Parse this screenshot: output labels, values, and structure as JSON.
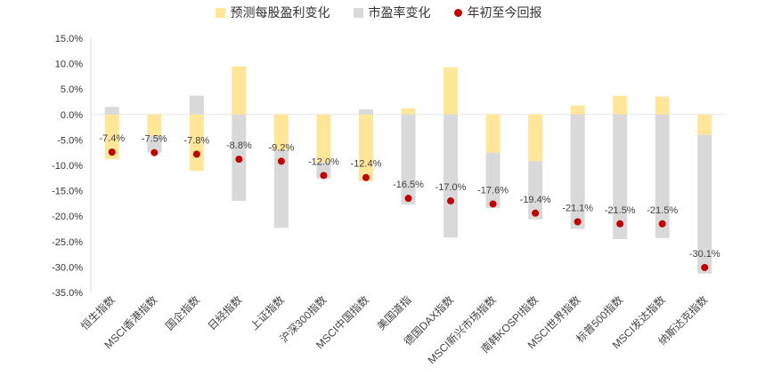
{
  "chart_data": {
    "type": "bar",
    "stacked": true,
    "title": "",
    "xlabel": "",
    "ylabel": "",
    "ylim": [
      -35,
      15
    ],
    "yticks": [
      "15.0%",
      "10.0%",
      "5.0%",
      "0.0%",
      "-5.0%",
      "-10.0%",
      "-15.0%",
      "-20.0%",
      "-25.0%",
      "-30.0%",
      "-35.0%"
    ],
    "ytick_values": [
      15,
      10,
      5,
      0,
      -5,
      -10,
      -15,
      -20,
      -25,
      -30,
      -35
    ],
    "legend_position": "top-center",
    "categories": [
      "恒生指数",
      "MSCI香港指数",
      "国企指数",
      "日经指数",
      "上证指数",
      "沪深300指数",
      "MSCI中国指数",
      "美国道指",
      "德国DAX指数",
      "MSCI新兴市场指数",
      "南韩KOSPI指数",
      "MSCI世界指数",
      "标普500指数",
      "MSCI发达指数",
      "纳斯达克指数"
    ],
    "series": [
      {
        "name": "预测每股盈利变化",
        "kind": "bar",
        "color": "#FFE699",
        "values": [
          -8.8,
          -4.2,
          -11.1,
          9.5,
          -7.0,
          -9.4,
          -13.1,
          1.2,
          9.3,
          -7.5,
          -9.2,
          1.8,
          3.7,
          3.5,
          -4.0
        ]
      },
      {
        "name": "市盈率变化",
        "kind": "bar",
        "color": "#D9D9D9",
        "values": [
          1.5,
          -3.3,
          3.7,
          -17.0,
          -15.3,
          -3.2,
          1.0,
          -17.7,
          -24.2,
          -10.9,
          -11.4,
          -22.5,
          -24.5,
          -24.3,
          -27.3
        ]
      },
      {
        "name": "年初至今回报",
        "kind": "scatter",
        "color": "#C00000",
        "values": [
          -7.4,
          -7.5,
          -7.8,
          -8.8,
          -9.2,
          -12.0,
          -12.4,
          -16.5,
          -17.0,
          -17.6,
          -19.4,
          -21.1,
          -21.5,
          -21.5,
          -30.1
        ],
        "labels": [
          "-7.4%",
          "-7.5%",
          "-7.8%",
          "-8.8%",
          "-9.2%",
          "-12.0%",
          "-12.4%",
          "-16.5%",
          "-17.0%",
          "-17.6%",
          "-19.4%",
          "-21.1%",
          "-21.5%",
          "-21.5%",
          "-30.1%"
        ]
      }
    ]
  }
}
